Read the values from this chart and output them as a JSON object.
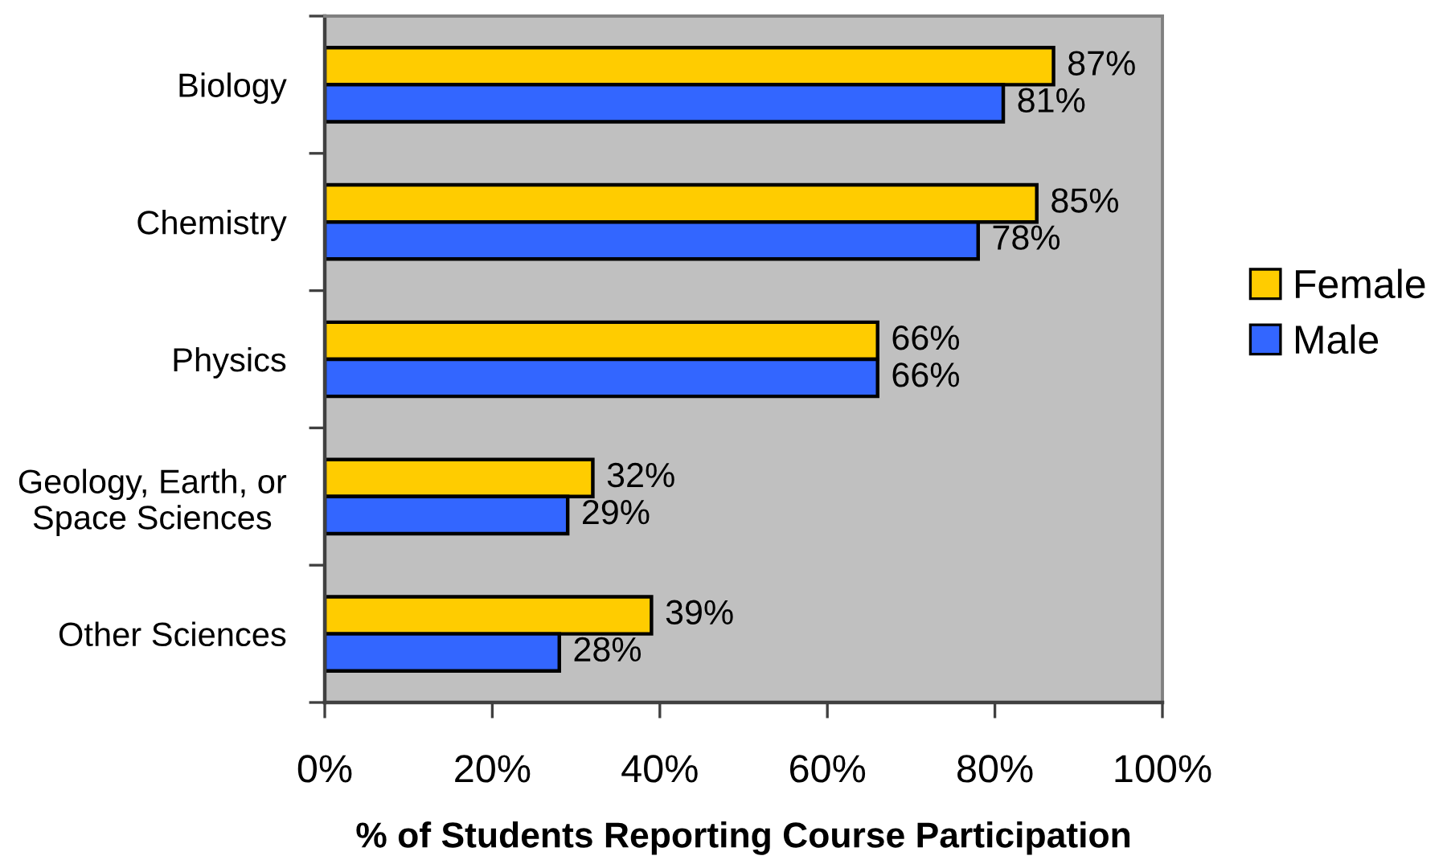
{
  "chart_data": {
    "type": "bar",
    "orientation": "horizontal",
    "xlabel": "% of Students Reporting Course Participation",
    "categories": [
      "Biology",
      "Chemistry",
      "Physics",
      "Geology, Earth, or\nSpace Sciences",
      "Other Sciences"
    ],
    "series": [
      {
        "name": "Female",
        "color": "#ffcc00",
        "values": [
          87,
          85,
          66,
          32,
          39
        ],
        "value_labels": [
          "87%",
          "85%",
          "66%",
          "32%",
          "39%"
        ]
      },
      {
        "name": "Male",
        "color": "#3366ff",
        "values": [
          81,
          78,
          66,
          29,
          28
        ],
        "value_labels": [
          "81%",
          "78%",
          "66%",
          "29%",
          "28%"
        ]
      }
    ],
    "xlim": [
      0,
      100
    ],
    "xticks": [
      {
        "value": 0,
        "label": "0%"
      },
      {
        "value": 20,
        "label": "20%"
      },
      {
        "value": 40,
        "label": "40%"
      },
      {
        "value": 60,
        "label": "60%"
      },
      {
        "value": 80,
        "label": "80%"
      },
      {
        "value": 100,
        "label": "100%"
      }
    ],
    "legend": "right",
    "grid": false
  }
}
